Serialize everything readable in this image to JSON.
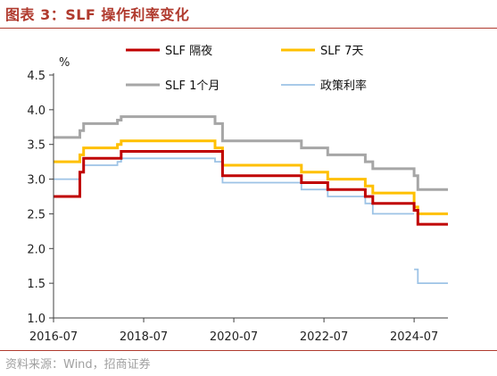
{
  "figure": {
    "title": "图表 3：SLF 操作利率变化",
    "source": "资料来源：Wind，招商证券"
  },
  "chart_data": {
    "type": "line",
    "title": "图表 3：SLF 操作利率变化",
    "xlabel": "",
    "ylabel": "%",
    "xlim": [
      "2016-07",
      "2025-04"
    ],
    "ylim": [
      1.0,
      4.5
    ],
    "yticks": [
      1.0,
      1.5,
      2.0,
      2.5,
      3.0,
      3.5,
      4.0,
      4.5
    ],
    "ytick_labels": [
      "1.0",
      "1.5",
      "2.0",
      "2.5",
      "3.0",
      "3.5",
      "4.0",
      "4.5"
    ],
    "xticks": [
      "2016-07",
      "2018-07",
      "2020-07",
      "2022-07",
      "2024-07"
    ],
    "grid": false,
    "legend": "top",
    "series": [
      {
        "name": "SLF 隔夜",
        "color": "#c00000",
        "step": true,
        "points": [
          [
            "2016-07",
            2.75
          ],
          [
            "2017-02",
            3.1
          ],
          [
            "2017-03",
            3.3
          ],
          [
            "2018-01",
            3.4
          ],
          [
            "2020-04",
            3.05
          ],
          [
            "2022-01",
            2.95
          ],
          [
            "2022-08",
            2.85
          ],
          [
            "2023-06",
            2.75
          ],
          [
            "2023-08",
            2.65
          ],
          [
            "2024-07",
            2.55
          ],
          [
            "2024-08",
            2.35
          ],
          [
            "2025-04",
            2.35
          ]
        ]
      },
      {
        "name": "SLF 7天",
        "color": "#ffc000",
        "step": true,
        "points": [
          [
            "2016-07",
            3.25
          ],
          [
            "2017-02",
            3.35
          ],
          [
            "2017-03",
            3.45
          ],
          [
            "2017-12",
            3.5
          ],
          [
            "2018-01",
            3.55
          ],
          [
            "2020-02",
            3.45
          ],
          [
            "2020-04",
            3.2
          ],
          [
            "2022-01",
            3.1
          ],
          [
            "2022-08",
            3.0
          ],
          [
            "2023-06",
            2.9
          ],
          [
            "2023-08",
            2.8
          ],
          [
            "2024-07",
            2.6
          ],
          [
            "2024-08",
            2.5
          ],
          [
            "2025-04",
            2.5
          ]
        ]
      },
      {
        "name": "SLF 1个月",
        "color": "#a6a6a6",
        "step": true,
        "points": [
          [
            "2016-07",
            3.6
          ],
          [
            "2017-02",
            3.7
          ],
          [
            "2017-03",
            3.8
          ],
          [
            "2017-12",
            3.85
          ],
          [
            "2018-01",
            3.9
          ],
          [
            "2020-02",
            3.8
          ],
          [
            "2020-04",
            3.55
          ],
          [
            "2022-01",
            3.45
          ],
          [
            "2022-08",
            3.35
          ],
          [
            "2023-06",
            3.25
          ],
          [
            "2023-08",
            3.15
          ],
          [
            "2024-07",
            3.05
          ],
          [
            "2024-08",
            2.85
          ],
          [
            "2025-04",
            2.85
          ]
        ]
      },
      {
        "name": "政策利率",
        "color": "#9dc3e6",
        "step": true,
        "segments": [
          [
            [
              "2016-07",
              3.0
            ],
            [
              "2017-02",
              3.1
            ],
            [
              "2017-03",
              3.2
            ],
            [
              "2017-12",
              3.25
            ],
            [
              "2018-01",
              3.3
            ],
            [
              "2020-02",
              3.25
            ],
            [
              "2020-04",
              2.95
            ],
            [
              "2022-01",
              2.85
            ],
            [
              "2022-08",
              2.75
            ],
            [
              "2023-06",
              2.65
            ],
            [
              "2023-08",
              2.5
            ],
            [
              "2024-07",
              2.5
            ]
          ],
          [
            [
              "2024-07",
              1.7
            ],
            [
              "2024-08",
              1.5
            ],
            [
              "2025-04",
              1.5
            ]
          ]
        ]
      }
    ]
  }
}
